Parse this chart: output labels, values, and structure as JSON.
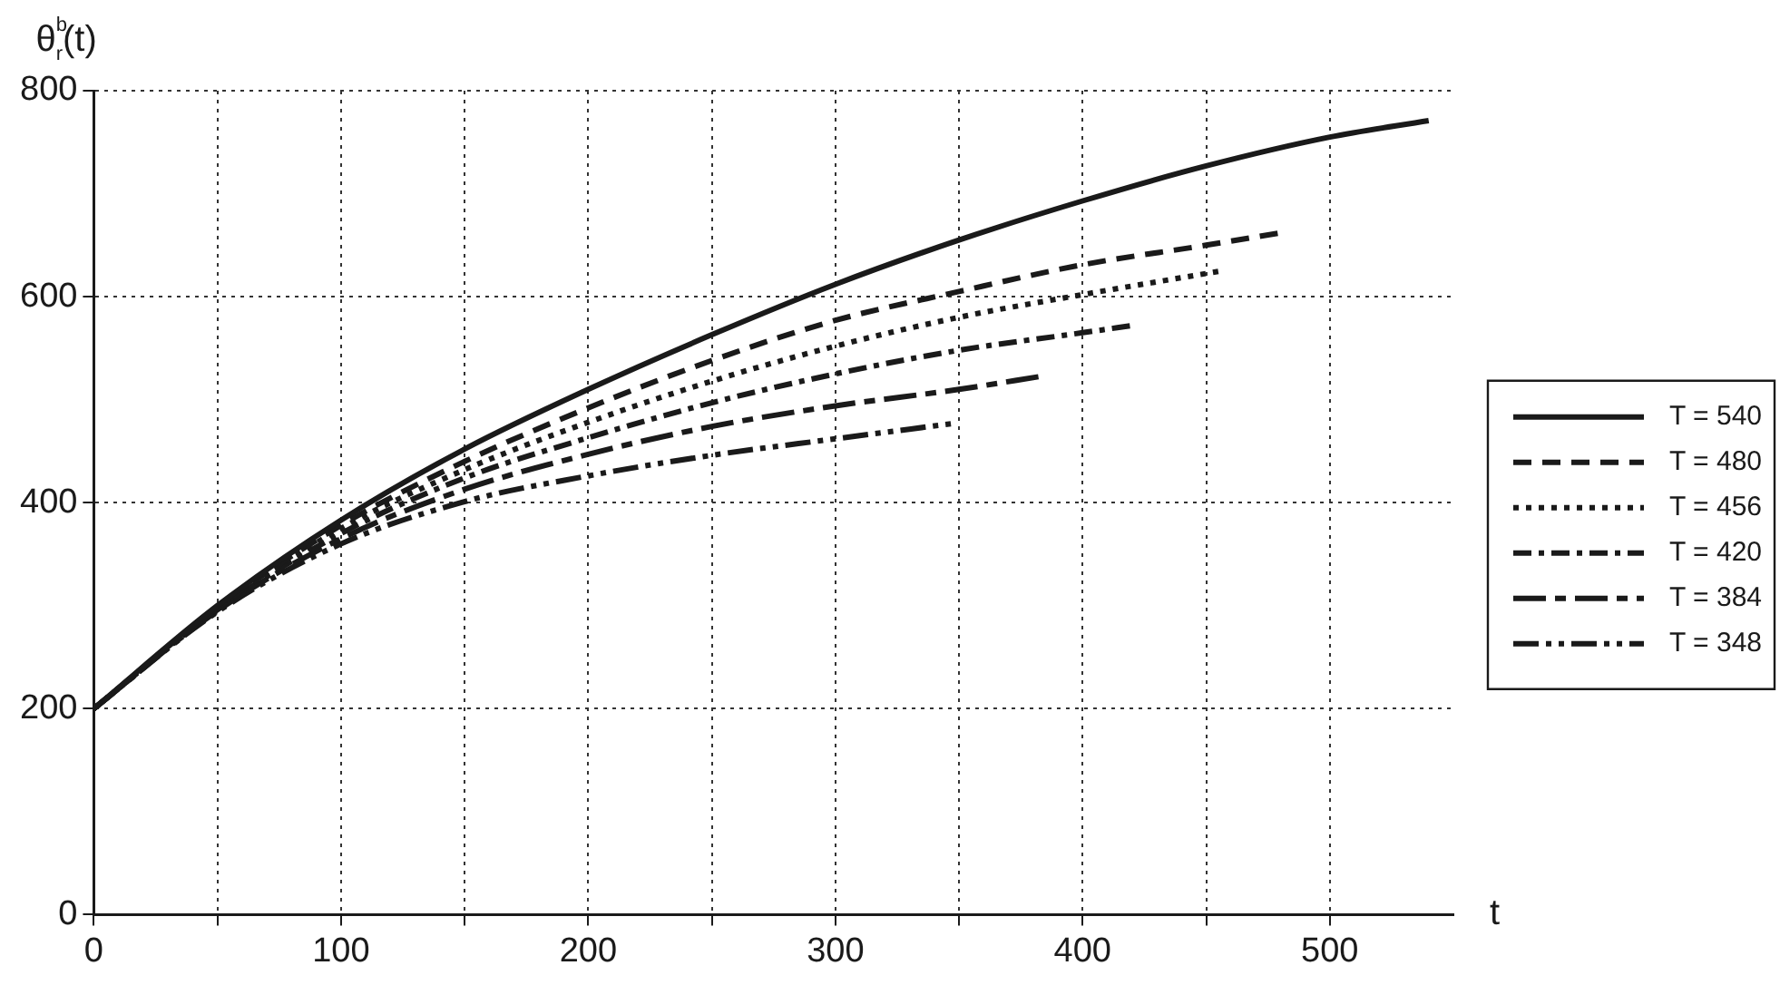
{
  "chart_data": {
    "type": "line",
    "xlabel": "t",
    "ylabel": "θ$^{b}$$_{r}$(t)",
    "xlim": [
      0,
      550
    ],
    "ylim": [
      0,
      800
    ],
    "xticks": [
      0,
      {
        "value": 50,
        "label": null
      },
      100,
      {
        "value": 150,
        "label": null
      },
      200,
      {
        "value": 250,
        "label": null
      },
      300,
      {
        "value": 350,
        "label": null
      },
      400,
      {
        "value": 450,
        "label": null
      },
      500
    ],
    "yticks": [
      0,
      200,
      400,
      600,
      800
    ],
    "grid": true,
    "legend": "right",
    "marker": "none",
    "series": [
      {
        "name": "T = 540",
        "color": "#1a1a1a",
        "line_style": "solid",
        "x": [
          0,
          50,
          100,
          150,
          200,
          250,
          300,
          350,
          400,
          450,
          500,
          540
        ],
        "values": [
          200,
          300,
          383,
          452,
          510,
          563,
          612,
          655,
          693,
          727,
          755,
          771
        ]
      },
      {
        "name": "T = 480",
        "color": "#1a1a1a",
        "line_style": "dashed",
        "x": [
          0,
          50,
          100,
          150,
          200,
          250,
          300,
          350,
          400,
          450,
          480
        ],
        "values": [
          200,
          298,
          378,
          440,
          492,
          538,
          577,
          605,
          631,
          650,
          662
        ]
      },
      {
        "name": "T = 456",
        "color": "#1a1a1a",
        "line_style": "dotted",
        "x": [
          0,
          50,
          100,
          150,
          200,
          250,
          300,
          350,
          400,
          456
        ],
        "values": [
          200,
          297,
          375,
          432,
          478,
          518,
          552,
          580,
          602,
          625
        ]
      },
      {
        "name": "T = 420",
        "color": "#1a1a1a",
        "line_style": "dashdot",
        "x": [
          0,
          50,
          100,
          150,
          200,
          250,
          300,
          350,
          400,
          420
        ],
        "values": [
          200,
          296,
          370,
          424,
          463,
          497,
          525,
          548,
          565,
          572
        ]
      },
      {
        "name": "T = 384",
        "color": "#1a1a1a",
        "line_style": "longdash",
        "x": [
          0,
          50,
          100,
          150,
          200,
          250,
          300,
          350,
          384
        ],
        "values": [
          200,
          295,
          365,
          413,
          447,
          474,
          494,
          510,
          523
        ]
      },
      {
        "name": "T = 348",
        "color": "#1a1a1a",
        "line_style": "dashdotdot",
        "x": [
          0,
          50,
          100,
          150,
          200,
          250,
          300,
          348
        ],
        "values": [
          200,
          294,
          360,
          401,
          426,
          446,
          462,
          477
        ]
      }
    ]
  }
}
